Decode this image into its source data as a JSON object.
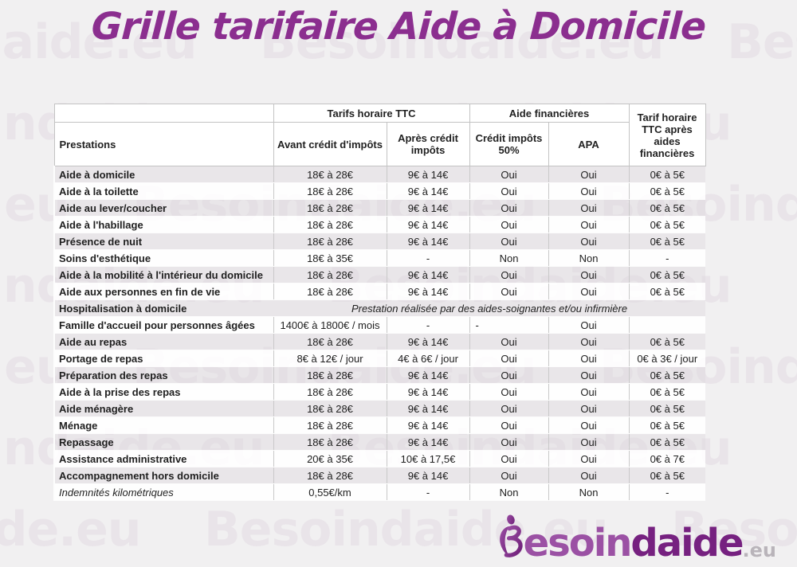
{
  "page": {
    "title": "Grille tarifaire Aide à Domicile"
  },
  "watermark": {
    "text": "Besoindaide.eu"
  },
  "table": {
    "header": {
      "prestations": "Prestations",
      "group_tarifs": "Tarifs horaire TTC",
      "group_aides": "Aide financières",
      "col_avant": "Avant crédit d'impôts",
      "col_apres": "Après crédit impôts",
      "col_credit": "Crédit impôts 50%",
      "col_apa": "APA",
      "col_tarif_apres_aides": "Tarif horaire TTC après aides financières"
    },
    "rows": [
      {
        "label": "Aide à domicile",
        "cells": [
          "18€ à 28€",
          "9€ à 14€",
          "Oui",
          "Oui",
          "0€ à 5€"
        ]
      },
      {
        "label": "Aide à la toilette",
        "cells": [
          "18€ à 28€",
          "9€ à 14€",
          "Oui",
          "Oui",
          "0€ à 5€"
        ]
      },
      {
        "label": "Aide au lever/coucher",
        "cells": [
          "18€ à 28€",
          "9€ à 14€",
          "Oui",
          "Oui",
          "0€ à 5€"
        ]
      },
      {
        "label": "Aide à l'habillage",
        "cells": [
          "18€ à 28€",
          "9€ à 14€",
          "Oui",
          "Oui",
          "0€ à 5€"
        ]
      },
      {
        "label": "Présence de nuit",
        "cells": [
          "18€ à 28€",
          "9€ à 14€",
          "Oui",
          "Oui",
          "0€ à 5€"
        ]
      },
      {
        "label": "Soins d'esthétique",
        "cells": [
          "18€ à 35€",
          "-",
          "Non",
          "Non",
          "-"
        ]
      },
      {
        "label": "Aide à la mobilité à l'intérieur du domicile",
        "cells": [
          "18€ à 28€",
          "9€ à 14€",
          "Oui",
          "Oui",
          "0€ à 5€"
        ]
      },
      {
        "label": "Aide aux personnes en fin de vie",
        "cells": [
          "18€ à 28€",
          "9€ à 14€",
          "Oui",
          "Oui",
          "0€ à 5€"
        ]
      },
      {
        "label": "Hospitalisation à domicile",
        "merged": "Prestation réalisée par des aides-soignantes et/ou infirmière"
      },
      {
        "label": "Famille d'accueil pour personnes âgées",
        "cells": [
          "1400€ à 1800€ / mois",
          "-",
          "-",
          "Oui",
          ""
        ],
        "left_dash_col": 2
      },
      {
        "label": "Aide au repas",
        "cells": [
          "18€ à 28€",
          "9€ à 14€",
          "Oui",
          "Oui",
          "0€ à 5€"
        ]
      },
      {
        "label": "Portage de repas",
        "cells": [
          "8€ à 12€ / jour",
          "4€ à 6€ / jour",
          "Oui",
          "Oui",
          "0€ à 3€ / jour"
        ]
      },
      {
        "label": "Préparation des repas",
        "cells": [
          "18€ à 28€",
          "9€ à 14€",
          "Oui",
          "Oui",
          "0€ à 5€"
        ]
      },
      {
        "label": "Aide à la prise des repas",
        "cells": [
          "18€ à 28€",
          "9€ à 14€",
          "Oui",
          "Oui",
          "0€ à 5€"
        ]
      },
      {
        "label": "Aide ménagère",
        "cells": [
          "18€ à 28€",
          "9€ à 14€",
          "Oui",
          "Oui",
          "0€ à 5€"
        ]
      },
      {
        "label": "Ménage",
        "cells": [
          "18€ à 28€",
          "9€ à 14€",
          "Oui",
          "Oui",
          "0€ à 5€"
        ]
      },
      {
        "label": "Repassage",
        "cells": [
          "18€ à 28€",
          "9€ à 14€",
          "Oui",
          "Oui",
          "0€ à 5€"
        ]
      },
      {
        "label": "Assistance administrative",
        "cells": [
          "20€ à 35€",
          "10€ à 17,5€",
          "Oui",
          "Oui",
          "0€ à 7€"
        ]
      },
      {
        "label": "Accompagnement hors domicile",
        "cells": [
          "18€ à 28€",
          "9€ à 14€",
          "Oui",
          "Oui",
          "0€ à 5€"
        ]
      },
      {
        "label": "Indemnités kilométriques",
        "italic": true,
        "cells": [
          "0,55€/km",
          "-",
          "Non",
          "Non",
          "-"
        ]
      }
    ]
  },
  "logo": {
    "prefix": "esoin",
    "mid": "daide",
    "tld": ".eu"
  }
}
